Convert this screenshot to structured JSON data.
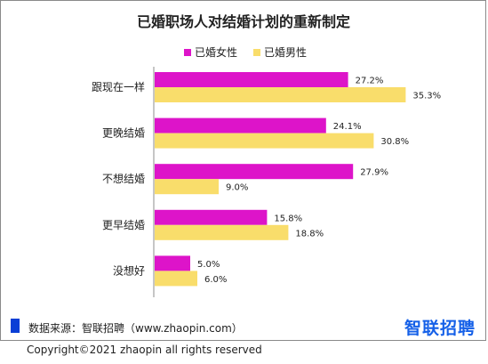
{
  "chart_data": {
    "type": "bar",
    "orientation": "horizontal",
    "title": "已婚职场人对结婚计划的重新制定",
    "categories": [
      "跟现在一样",
      "更晚结婚",
      "不想结婚",
      "更早结婚",
      "没想好"
    ],
    "series": [
      {
        "name": "已婚女性",
        "color": "#dd14c9",
        "values": [
          27.2,
          24.1,
          27.9,
          15.8,
          5.0
        ]
      },
      {
        "name": "已婚男性",
        "color": "#f9dd6b",
        "values": [
          35.3,
          30.8,
          9.0,
          18.8,
          6.0
        ]
      }
    ],
    "value_format": "percent_1dp",
    "legend_position": "top-center",
    "grid": false
  },
  "footer": {
    "source": "数据来源：智联招聘（www.zhaopin.com）",
    "brand": "智联招聘",
    "copyright": "Copyright©2021 zhaopin all rights reserved"
  }
}
